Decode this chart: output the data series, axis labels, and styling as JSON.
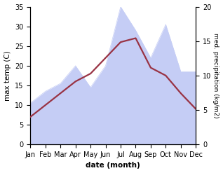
{
  "months": [
    "Jan",
    "Feb",
    "Mar",
    "Apr",
    "May",
    "Jun",
    "Jul",
    "Aug",
    "Sep",
    "Oct",
    "Nov",
    "Dec"
  ],
  "temp": [
    7.0,
    10.0,
    13.0,
    16.0,
    18.0,
    22.0,
    26.0,
    27.0,
    19.5,
    17.5,
    13.0,
    9.0
  ],
  "precip": [
    10.5,
    13.5,
    15.5,
    20.0,
    14.5,
    20.0,
    35.0,
    29.0,
    22.0,
    30.5,
    18.5,
    18.5
  ],
  "temp_color": "#993344",
  "precip_fill_color": "#c5cdf5",
  "precip_line_color": "#c5cdf5",
  "temp_ylim": [
    0,
    35
  ],
  "precip_ylim": [
    0,
    35
  ],
  "right_yticks": [
    0,
    5,
    10,
    15,
    20
  ],
  "right_yticklabels": [
    "0",
    "5",
    "10",
    "15",
    "20"
  ],
  "xlabel": "date (month)",
  "ylabel_left": "max temp (C)",
  "ylabel_right": "med. precipitation (kg/m2)",
  "background_color": "#ffffff",
  "temp_linewidth": 1.6,
  "label_fontsize": 7.5,
  "tick_fontsize": 7
}
